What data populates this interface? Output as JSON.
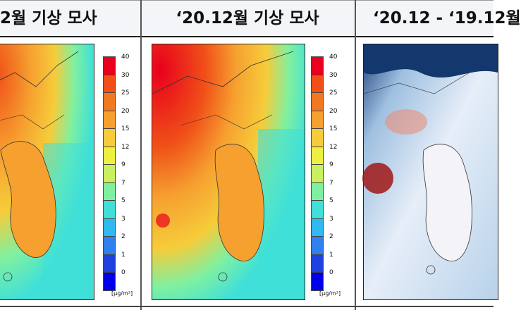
{
  "titles": {
    "left": "2월 기상 모사",
    "middle": "‘20.12월 기상 모사",
    "right": "‘20.12 - ‘19.12월"
  },
  "colorbar": {
    "ticks": [
      "40",
      "30",
      "25",
      "20",
      "15",
      "12",
      "9",
      "7",
      "5",
      "3",
      "2",
      "1",
      "0"
    ],
    "colors": [
      "#e8001c",
      "#f05018",
      "#f07820",
      "#f6a030",
      "#f6cc3a",
      "#eef040",
      "#c8f060",
      "#80f0a0",
      "#40e0d8",
      "#30b8f0",
      "#3080f0",
      "#2040e0",
      "#0000e8"
    ],
    "unit": "[μg/m³]"
  },
  "maps": {
    "left": {
      "icon": "korea-pm-map-icon"
    },
    "middle": {
      "icon": "korea-pm-map-icon"
    },
    "right": {
      "icon": "korea-diff-map-icon"
    }
  }
}
